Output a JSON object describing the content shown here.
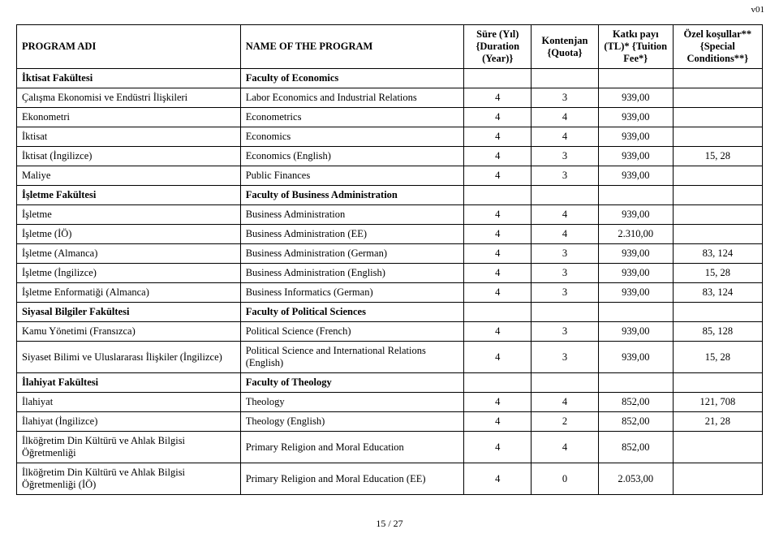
{
  "page_label": "v01",
  "footer": "15 / 27",
  "headers": {
    "c1": "PROGRAM ADI",
    "c2": "NAME OF THE PROGRAM",
    "c3": "Süre (Yıl) {Duration (Year)}",
    "c4": "Kontenjan {Quota}",
    "c5": "Katkı payı (TL)* {Tuition Fee*}",
    "c6": "Özel koşullar** {Special Conditions**}"
  },
  "rows": [
    {
      "c1": "İktisat Fakültesi",
      "c2": "Faculty of Economics",
      "c3": "",
      "c4": "",
      "c5": "",
      "c6": "",
      "bold": true
    },
    {
      "c1": "Çalışma Ekonomisi ve Endüstri İlişkileri",
      "c2": "Labor Economics and Industrial Relations",
      "c3": "4",
      "c4": "3",
      "c5": "939,00",
      "c6": ""
    },
    {
      "c1": "Ekonometri",
      "c2": "Econometrics",
      "c3": "4",
      "c4": "4",
      "c5": "939,00",
      "c6": ""
    },
    {
      "c1": "İktisat",
      "c2": "Economics",
      "c3": "4",
      "c4": "4",
      "c5": "939,00",
      "c6": ""
    },
    {
      "c1": "İktisat (İngilizce)",
      "c2": "Economics (English)",
      "c3": "4",
      "c4": "3",
      "c5": "939,00",
      "c6": "15, 28"
    },
    {
      "c1": "Maliye",
      "c2": "Public Finances",
      "c3": "4",
      "c4": "3",
      "c5": "939,00",
      "c6": ""
    },
    {
      "c1": "İşletme Fakültesi",
      "c2": "Faculty of Business Administration",
      "c3": "",
      "c4": "",
      "c5": "",
      "c6": "",
      "bold": true
    },
    {
      "c1": "İşletme",
      "c2": "Business Administration",
      "c3": "4",
      "c4": "4",
      "c5": "939,00",
      "c6": ""
    },
    {
      "c1": "İşletme (İÖ)",
      "c2": "Business Administration (EE)",
      "c3": "4",
      "c4": "4",
      "c5": "2.310,00",
      "c6": ""
    },
    {
      "c1": "İşletme (Almanca)",
      "c2": "Business Administration (German)",
      "c3": "4",
      "c4": "3",
      "c5": "939,00",
      "c6": "83, 124"
    },
    {
      "c1": "İşletme (İngilizce)",
      "c2": "Business Administration (English)",
      "c3": "4",
      "c4": "3",
      "c5": "939,00",
      "c6": "15, 28"
    },
    {
      "c1": "İşletme Enformatiği (Almanca)",
      "c2": "Business Informatics (German)",
      "c3": "4",
      "c4": "3",
      "c5": "939,00",
      "c6": "83, 124"
    },
    {
      "c1": "Siyasal Bilgiler Fakültesi",
      "c2": "Faculty of Political Sciences",
      "c3": "",
      "c4": "",
      "c5": "",
      "c6": "",
      "bold": true
    },
    {
      "c1": "Kamu Yönetimi (Fransızca)",
      "c2": "Political Science (French)",
      "c3": "4",
      "c4": "3",
      "c5": "939,00",
      "c6": "85, 128"
    },
    {
      "c1": "Siyaset Bilimi ve Uluslararası İlişkiler (İngilizce)",
      "c2": "Political Science and International Relations (English)",
      "c3": "4",
      "c4": "3",
      "c5": "939,00",
      "c6": "15, 28"
    },
    {
      "c1": "İlahiyat Fakültesi",
      "c2": "Faculty of Theology",
      "c3": "",
      "c4": "",
      "c5": "",
      "c6": "",
      "bold": true
    },
    {
      "c1": "İlahiyat",
      "c2": "Theology",
      "c3": "4",
      "c4": "4",
      "c5": "852,00",
      "c6": "121, 708"
    },
    {
      "c1": "İlahiyat (İngilizce)",
      "c2": "Theology (English)",
      "c3": "4",
      "c4": "2",
      "c5": "852,00",
      "c6": "21, 28"
    },
    {
      "c1": "İlköğretim Din Kültürü ve Ahlak Bilgisi Öğretmenliği",
      "c2": "Primary Religion and Moral Education",
      "c3": "4",
      "c4": "4",
      "c5": "852,00",
      "c6": ""
    },
    {
      "c1": "İlköğretim Din Kültürü ve Ahlak Bilgisi Öğretmenliği (İÖ)",
      "c2": "Primary Religion and Moral Education (EE)",
      "c3": "4",
      "c4": "0",
      "c5": "2.053,00",
      "c6": ""
    }
  ]
}
